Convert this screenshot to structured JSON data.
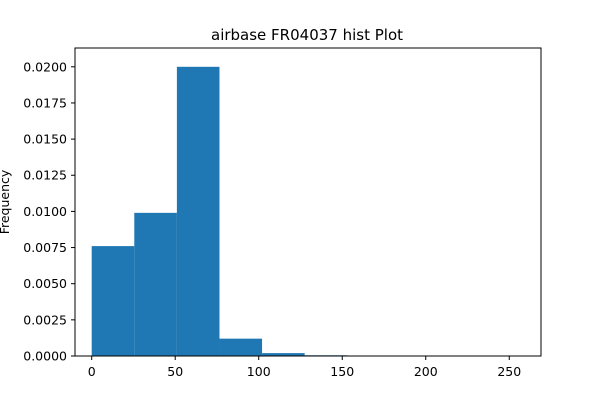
{
  "chart_data": {
    "type": "bar",
    "title": "airbase FR04037 hist Plot",
    "xlabel": "",
    "ylabel": "Frequency",
    "bin_edges": [
      0,
      25.5,
      51,
      76.5,
      102,
      127.5,
      153,
      178.5,
      204,
      229.5,
      255
    ],
    "values": [
      0.0076,
      0.0099,
      0.02,
      0.0012,
      0.0002,
      5e-05,
      0.0,
      0.0,
      0.0,
      0.0
    ],
    "xlim": [
      -10,
      269
    ],
    "ylim": [
      0,
      0.0213
    ],
    "x_ticks": [
      0,
      50,
      100,
      150,
      200,
      250
    ],
    "y_ticks": [
      0.0,
      0.0025,
      0.005,
      0.0075,
      0.01,
      0.0125,
      0.015,
      0.0175,
      0.02
    ],
    "x_tick_labels": [
      "0",
      "50",
      "100",
      "150",
      "200",
      "250"
    ],
    "y_tick_labels": [
      "0.0000",
      "0.0025",
      "0.0050",
      "0.0075",
      "0.0100",
      "0.0125",
      "0.0150",
      "0.0175",
      "0.0200"
    ],
    "grid": false,
    "colors": {
      "bar": "#1f77b4",
      "axes": "#000000",
      "background": "#ffffff"
    }
  }
}
